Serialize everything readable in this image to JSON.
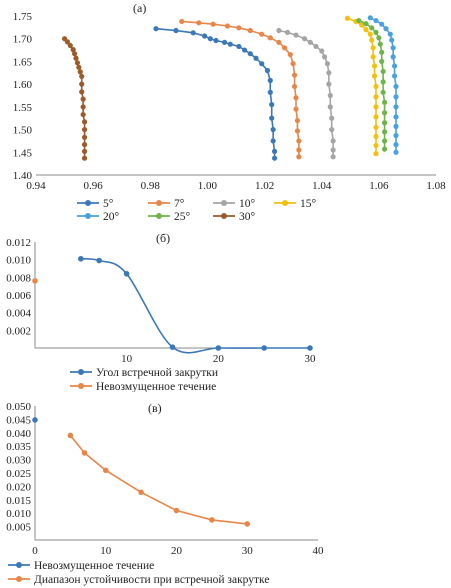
{
  "chart_data": [
    {
      "type": "line",
      "panel_label": "(а)",
      "xlim": [
        0.94,
        1.08
      ],
      "ylim": [
        1.4,
        1.75
      ],
      "x_ticks": [
        "0.94",
        "0.96",
        "0.98",
        "1.00",
        "1.02",
        "1.04",
        "1.06",
        "1.08"
      ],
      "y_ticks": [
        "1.40",
        "1.45",
        "1.50",
        "1.55",
        "1.60",
        "1.65",
        "1.70",
        "1.75"
      ],
      "grid": false,
      "legend_position": "bottom",
      "series": [
        {
          "name": "5°",
          "color": "#3b78b8",
          "points": [
            [
              0.982,
              1.722
            ],
            [
              0.989,
              1.718
            ],
            [
              0.995,
              1.713
            ],
            [
              0.999,
              1.706
            ],
            [
              1.001,
              1.7
            ],
            [
              1.003,
              1.696
            ],
            [
              1.006,
              1.692
            ],
            [
              1.008,
              1.688
            ],
            [
              1.011,
              1.683
            ],
            [
              1.013,
              1.675
            ],
            [
              1.015,
              1.667
            ],
            [
              1.017,
              1.657
            ],
            [
              1.019,
              1.645
            ],
            [
              1.021,
              1.63
            ],
            [
              1.022,
              1.608
            ],
            [
              1.022,
              1.582
            ],
            [
              1.0225,
              1.555
            ],
            [
              1.0225,
              1.525
            ],
            [
              1.023,
              1.5
            ],
            [
              1.023,
              1.475
            ],
            [
              1.0235,
              1.452
            ],
            [
              1.0235,
              1.437
            ]
          ]
        },
        {
          "name": "7°",
          "color": "#e8864a",
          "points": [
            [
              0.991,
              1.738
            ],
            [
              0.997,
              1.735
            ],
            [
              1.002,
              1.732
            ],
            [
              1.007,
              1.728
            ],
            [
              1.011,
              1.724
            ],
            [
              1.015,
              1.718
            ],
            [
              1.019,
              1.71
            ],
            [
              1.022,
              1.702
            ],
            [
              1.025,
              1.692
            ],
            [
              1.027,
              1.68
            ],
            [
              1.029,
              1.665
            ],
            [
              1.03,
              1.645
            ],
            [
              1.0305,
              1.62
            ],
            [
              1.0305,
              1.595
            ],
            [
              1.031,
              1.57
            ],
            [
              1.031,
              1.545
            ],
            [
              1.0315,
              1.52
            ],
            [
              1.0315,
              1.497
            ],
            [
              1.032,
              1.475
            ],
            [
              1.032,
              1.455
            ],
            [
              1.032,
              1.44
            ]
          ]
        },
        {
          "name": "10°",
          "color": "#a5a5a5",
          "points": [
            [
              1.025,
              1.718
            ],
            [
              1.028,
              1.714
            ],
            [
              1.031,
              1.708
            ],
            [
              1.034,
              1.7
            ],
            [
              1.036,
              1.692
            ],
            [
              1.038,
              1.683
            ],
            [
              1.04,
              1.673
            ],
            [
              1.041,
              1.66
            ],
            [
              1.042,
              1.645
            ],
            [
              1.0425,
              1.625
            ],
            [
              1.0425,
              1.6
            ],
            [
              1.043,
              1.575
            ],
            [
              1.043,
              1.55
            ],
            [
              1.0435,
              1.525
            ],
            [
              1.0435,
              1.5
            ],
            [
              1.044,
              1.475
            ],
            [
              1.044,
              1.455
            ],
            [
              1.044,
              1.44
            ]
          ]
        },
        {
          "name": "15°",
          "color": "#f2c10f",
          "points": [
            [
              1.049,
              1.745
            ],
            [
              1.052,
              1.738
            ],
            [
              1.054,
              1.73
            ],
            [
              1.0555,
              1.72
            ],
            [
              1.057,
              1.71
            ],
            [
              1.0575,
              1.697
            ],
            [
              1.058,
              1.68
            ],
            [
              1.058,
              1.66
            ],
            [
              1.0585,
              1.64
            ],
            [
              1.0585,
              1.618
            ],
            [
              1.059,
              1.595
            ],
            [
              1.059,
              1.572
            ],
            [
              1.059,
              1.55
            ],
            [
              1.059,
              1.528
            ],
            [
              1.059,
              1.505
            ],
            [
              1.059,
              1.485
            ],
            [
              1.059,
              1.465
            ],
            [
              1.059,
              1.447
            ]
          ]
        },
        {
          "name": "20°",
          "color": "#4aa1dd",
          "points": [
            [
              1.057,
              1.746
            ],
            [
              1.059,
              1.74
            ],
            [
              1.061,
              1.732
            ],
            [
              1.0625,
              1.722
            ],
            [
              1.064,
              1.71
            ],
            [
              1.0645,
              1.697
            ],
            [
              1.065,
              1.68
            ],
            [
              1.065,
              1.66
            ],
            [
              1.0655,
              1.64
            ],
            [
              1.0655,
              1.618
            ],
            [
              1.066,
              1.595
            ],
            [
              1.066,
              1.572
            ],
            [
              1.066,
              1.55
            ],
            [
              1.066,
              1.528
            ],
            [
              1.066,
              1.507
            ],
            [
              1.066,
              1.487
            ],
            [
              1.066,
              1.467
            ],
            [
              1.066,
              1.45
            ]
          ]
        },
        {
          "name": "25°",
          "color": "#6fb44a",
          "points": [
            [
              1.053,
              1.74
            ],
            [
              1.0555,
              1.733
            ],
            [
              1.0575,
              1.724
            ],
            [
              1.059,
              1.714
            ],
            [
              1.06,
              1.702
            ],
            [
              1.0605,
              1.688
            ],
            [
              1.061,
              1.67
            ],
            [
              1.061,
              1.65
            ],
            [
              1.0615,
              1.628
            ],
            [
              1.0615,
              1.605
            ],
            [
              1.0615,
              1.582
            ],
            [
              1.062,
              1.56
            ],
            [
              1.062,
              1.537
            ],
            [
              1.062,
              1.515
            ],
            [
              1.062,
              1.495
            ],
            [
              1.062,
              1.475
            ],
            [
              1.062,
              1.457
            ]
          ]
        },
        {
          "name": "30°",
          "color": "#9c5b2a",
          "points": [
            [
              0.95,
              1.7
            ],
            [
              0.951,
              1.693
            ],
            [
              0.952,
              1.685
            ],
            [
              0.953,
              1.676
            ],
            [
              0.9535,
              1.667
            ],
            [
              0.954,
              1.657
            ],
            [
              0.9545,
              1.647
            ],
            [
              0.955,
              1.637
            ],
            [
              0.9555,
              1.627
            ],
            [
              0.956,
              1.617
            ],
            [
              0.956,
              1.6
            ],
            [
              0.956,
              1.583
            ],
            [
              0.9565,
              1.567
            ],
            [
              0.9565,
              1.55
            ],
            [
              0.9565,
              1.533
            ],
            [
              0.957,
              1.517
            ],
            [
              0.957,
              1.5
            ],
            [
              0.957,
              1.483
            ],
            [
              0.957,
              1.467
            ],
            [
              0.957,
              1.452
            ],
            [
              0.957,
              1.437
            ]
          ]
        }
      ]
    },
    {
      "type": "line",
      "panel_label": "(б)",
      "xlim": [
        0,
        30
      ],
      "ylim": [
        0,
        0.012
      ],
      "x_ticks": [
        "10",
        "20",
        "30"
      ],
      "y_ticks": [
        "0.002",
        "0.004",
        "0.006",
        "0.008",
        "0.010",
        "0.012"
      ],
      "grid": false,
      "legend_position": "bottom",
      "series": [
        {
          "name": "Угол встречной закрутки",
          "color": "#3b78b8",
          "points": [
            [
              5,
              0.0101
            ],
            [
              7,
              0.0099
            ],
            [
              10,
              0.0084
            ],
            [
              15,
              0.0001
            ],
            [
              20,
              0.0
            ],
            [
              25,
              0.0
            ],
            [
              30,
              0.0
            ]
          ]
        },
        {
          "name": "Невозмущенное течение",
          "color": "#e8864a",
          "points": [
            [
              0,
              0.0076
            ]
          ]
        }
      ]
    },
    {
      "type": "line",
      "panel_label": "(в)",
      "xlim": [
        0,
        40
      ],
      "ylim": [
        0,
        0.05
      ],
      "x_ticks": [
        "0",
        "10",
        "20",
        "30",
        "40"
      ],
      "y_ticks": [
        "0.005",
        "0.010",
        "0.015",
        "0.020",
        "0.025",
        "0.030",
        "0.035",
        "0.040",
        "0.045",
        "0.050"
      ],
      "grid": false,
      "legend_position": "bottom",
      "series": [
        {
          "name": "Невозмущенное течение",
          "color": "#3b78b8",
          "points": [
            [
              0,
              0.0448
            ]
          ]
        },
        {
          "name": "Диапазон устойчивости при встречной закрутке",
          "color": "#e8864a",
          "points": [
            [
              5,
              0.039
            ],
            [
              7,
              0.0325
            ],
            [
              10,
              0.026
            ],
            [
              15,
              0.0178
            ],
            [
              20,
              0.011
            ],
            [
              25,
              0.0075
            ],
            [
              30,
              0.006
            ]
          ]
        }
      ]
    }
  ]
}
